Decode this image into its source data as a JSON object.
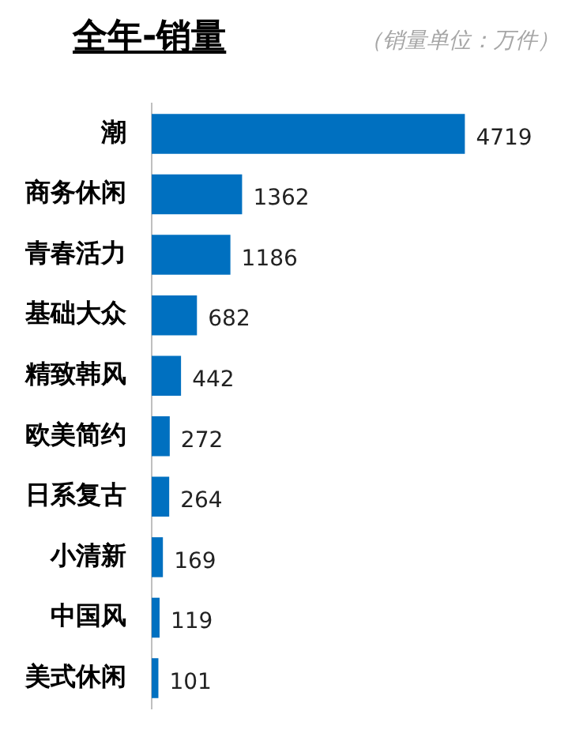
{
  "chart_data": {
    "type": "bar",
    "orientation": "horizontal",
    "title": "全年-销量",
    "subtitle": "（销量单位：万件）",
    "categories": [
      "潮",
      "商务休闲",
      "青春活力",
      "基础大众",
      "精致韩风",
      "欧美简约",
      "日系复古",
      "小清新",
      "中国风",
      "美式休闲"
    ],
    "values": [
      4719,
      1362,
      1186,
      682,
      442,
      272,
      264,
      169,
      119,
      101
    ],
    "color": "#0070c0",
    "data_labels": true
  }
}
